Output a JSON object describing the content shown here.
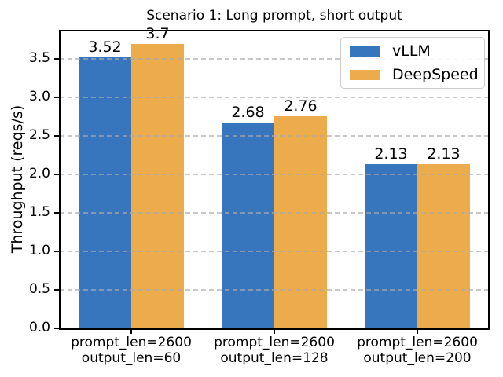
{
  "chart_data": {
    "type": "bar",
    "title": "Scenario 1: Long prompt, short output",
    "xlabel": "",
    "ylabel": "Throughput (reqs/s)",
    "categories": [
      "prompt_len=2600\noutput_len=60",
      "prompt_len=2600\noutput_len=128",
      "prompt_len=2600\noutput_len=200"
    ],
    "series": [
      {
        "name": "vLLM",
        "color": "#3776BC",
        "values": [
          3.52,
          2.68,
          2.13
        ],
        "labels": [
          "3.52",
          "2.68",
          "2.13"
        ]
      },
      {
        "name": "DeepSpeed",
        "color": "#EDAC4B",
        "values": [
          3.7,
          2.76,
          2.13
        ],
        "labels": [
          "3.7",
          "2.76",
          "2.13"
        ]
      }
    ],
    "ylim": [
      0,
      3.87
    ],
    "yticks": [
      0,
      0.5,
      1,
      1.5,
      2,
      2.5,
      3,
      3.5
    ],
    "ytick_labels": [
      "0.0",
      "0.5",
      "1.0",
      "1.5",
      "2.0",
      "2.5",
      "3.0",
      "3.5"
    ],
    "grid": {
      "axis": "y",
      "style": "dashed",
      "color": "#AAAAAA",
      "over_bars": true
    },
    "legend": {
      "position": "upper right",
      "entries": [
        "vLLM",
        "DeepSpeed"
      ]
    },
    "axis_color": "#000000",
    "background": "#FFFFFF"
  }
}
